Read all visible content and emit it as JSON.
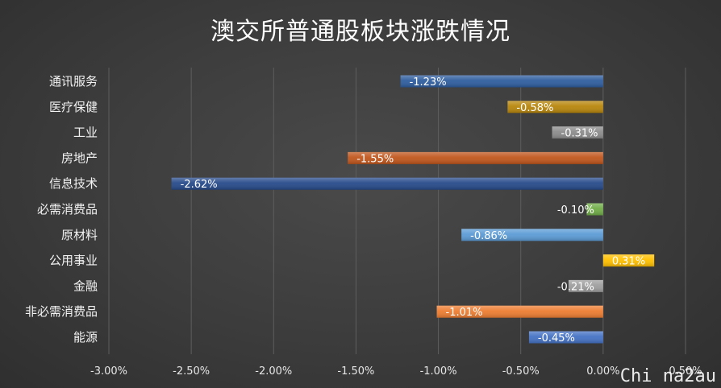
{
  "chart_data": {
    "type": "bar",
    "orientation": "horizontal",
    "title": "澳交所普通股板块涨跌情况",
    "categories": [
      "通讯服务",
      "医疗保健",
      "工业",
      "房地产",
      "信息技术",
      "必需消费品",
      "原材料",
      "公用事业",
      "金融",
      "非必需消费品",
      "能源"
    ],
    "values": [
      -1.23,
      -0.58,
      -0.31,
      -1.55,
      -2.62,
      -0.1,
      -0.86,
      0.31,
      -0.21,
      -1.01,
      -0.45
    ],
    "data_labels": [
      "-1.23%",
      "-0.58%",
      "-0.31%",
      "-1.55%",
      "-2.62%",
      "-0.10%",
      "-0.86%",
      "0.31%",
      "-0.21%",
      "-1.01%",
      "-0.45%"
    ],
    "colors": [
      "#2e5d9e",
      "#b8860b",
      "#8c8c8c",
      "#c0561c",
      "#264a8a",
      "#70ad47",
      "#5b9bd5",
      "#ffc000",
      "#9e9e9e",
      "#ed7d31",
      "#4472c4"
    ],
    "xlim": [
      -3.0,
      0.5
    ],
    "x_ticks": [
      -3.0,
      -2.5,
      -2.0,
      -1.5,
      -1.0,
      -0.5,
      0.0,
      0.5
    ],
    "x_tick_labels": [
      "-3.00%",
      "-2.50%",
      "-2.00%",
      "-1.50%",
      "-1.00%",
      "-0.50%",
      "0.00%",
      "0.50%"
    ],
    "grid": "vertical",
    "legend": "none"
  },
  "watermark": "Chi na2au"
}
